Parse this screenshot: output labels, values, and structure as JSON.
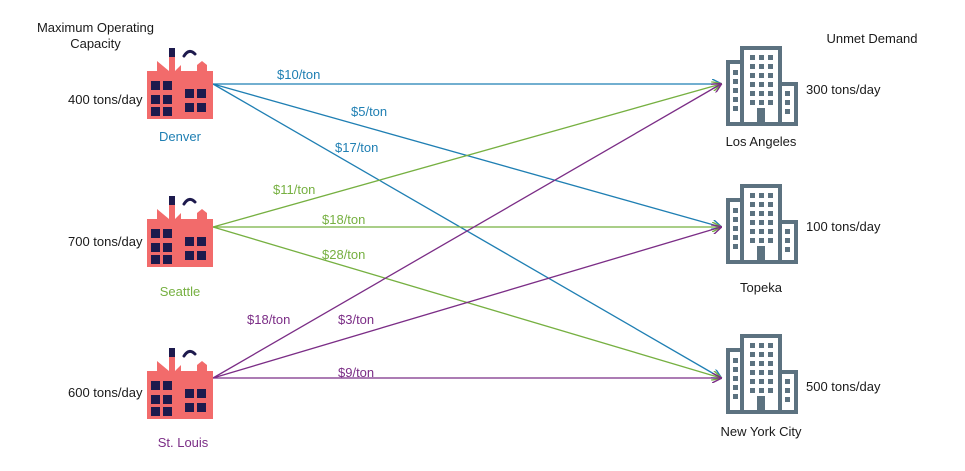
{
  "headers": {
    "capacity": "Maximum Operating Capacity",
    "demand": "Unmet Demand"
  },
  "colors": {
    "denver": "#1f7fb3",
    "seattle": "#76b041",
    "stlouis": "#7b2d86",
    "factory": "#f26b6b",
    "factory_dark": "#1d1a4d",
    "building": "#5c7280"
  },
  "factories": [
    {
      "id": "denver",
      "name": "Denver",
      "capacity": "400 tons/day"
    },
    {
      "id": "seattle",
      "name": "Seattle",
      "capacity": "700 tons/day"
    },
    {
      "id": "stlouis",
      "name": "St. Louis",
      "capacity": "600 tons/day"
    }
  ],
  "cities": [
    {
      "id": "la",
      "name": "Los Angeles",
      "demand": "300 tons/day"
    },
    {
      "id": "topeka",
      "name": "Topeka",
      "demand": "100 tons/day"
    },
    {
      "id": "nyc",
      "name": "New York City",
      "demand": "500 tons/day"
    }
  ],
  "routes": [
    {
      "from": "denver",
      "to": "la",
      "cost": "$10/ton"
    },
    {
      "from": "denver",
      "to": "topeka",
      "cost": "$5/ton"
    },
    {
      "from": "denver",
      "to": "nyc",
      "cost": "$17/ton"
    },
    {
      "from": "seattle",
      "to": "la",
      "cost": "$11/ton"
    },
    {
      "from": "seattle",
      "to": "topeka",
      "cost": "$18/ton"
    },
    {
      "from": "seattle",
      "to": "nyc",
      "cost": "$28/ton"
    },
    {
      "from": "stlouis",
      "to": "la",
      "cost": "$18/ton"
    },
    {
      "from": "stlouis",
      "to": "topeka",
      "cost": "$3/ton"
    },
    {
      "from": "stlouis",
      "to": "nyc",
      "cost": "$9/ton"
    }
  ]
}
